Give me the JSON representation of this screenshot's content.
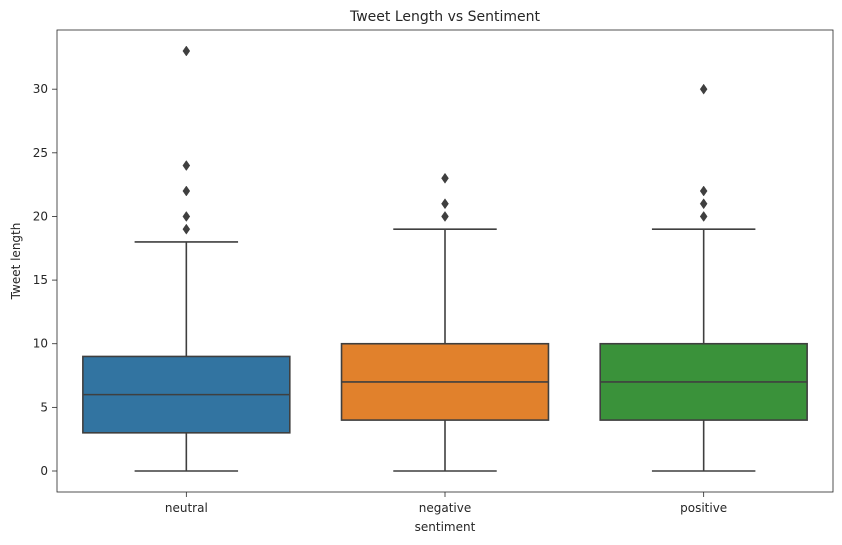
{
  "chart_data": {
    "type": "box",
    "title": "Tweet Length vs Sentiment",
    "xlabel": "sentiment",
    "ylabel": "Tweet length",
    "ylim": [
      -1.65,
      34.65
    ],
    "yticks": [
      0,
      5,
      10,
      15,
      20,
      25,
      30
    ],
    "grid": false,
    "categories": [
      "neutral",
      "negative",
      "positive"
    ],
    "colors": [
      "#3274a1",
      "#e1812c",
      "#3a923a"
    ],
    "line_color": "#3f3f3f",
    "boxes": [
      {
        "whisker_low": 0,
        "q1": 3,
        "median": 6,
        "q3": 9,
        "whisker_high": 18,
        "outliers": [
          19,
          20,
          22,
          24,
          33
        ]
      },
      {
        "whisker_low": 0,
        "q1": 4,
        "median": 7,
        "q3": 10,
        "whisker_high": 19,
        "outliers": [
          20,
          21,
          23
        ]
      },
      {
        "whisker_low": 0,
        "q1": 4,
        "median": 7,
        "q3": 10,
        "whisker_high": 19,
        "outliers": [
          20,
          21,
          22,
          30
        ]
      }
    ]
  }
}
